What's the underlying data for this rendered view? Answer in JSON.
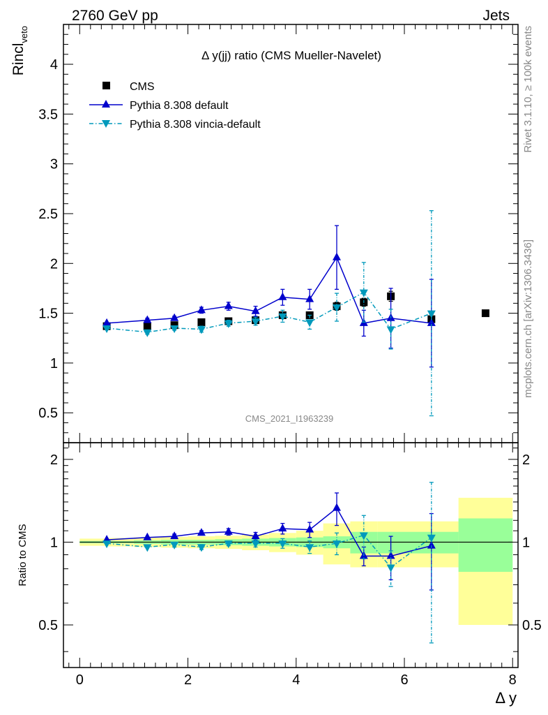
{
  "header": {
    "left": "2760 GeV pp",
    "right": "Jets"
  },
  "side_labels": {
    "rivet": "Rivet 3.1.10, ≥ 100k events",
    "mcplots": "mcplots.cern.ch [arXiv:1306.3436]"
  },
  "watermark": "CMS_2021_I1963239",
  "chart_data": [
    {
      "type": "scatter",
      "title": "Δ y(jj) ratio (CMS Mueller-Navelet)",
      "ylabel": "Rincl",
      "ylabel_sub": "veto",
      "xlim": [
        -0.3,
        8.1
      ],
      "ylim": [
        0.2,
        4.4
      ],
      "yticks": [
        0.5,
        1,
        1.5,
        2,
        2.5,
        3,
        3.5,
        4
      ],
      "ytick_labels": [
        "0.5",
        "1",
        "1.5",
        "2",
        "2.5",
        "3",
        "3.5",
        "4"
      ],
      "legend_position": "top-left",
      "series": [
        {
          "name": "CMS",
          "marker": "square",
          "color": "#000000",
          "x": [
            0.5,
            1.25,
            1.75,
            2.25,
            2.75,
            3.25,
            3.75,
            4.25,
            4.75,
            5.25,
            5.75,
            6.5,
            7.5
          ],
          "y": [
            1.37,
            1.37,
            1.38,
            1.41,
            1.42,
            1.43,
            1.48,
            1.48,
            1.57,
            1.61,
            1.67,
            1.44,
            1.5
          ],
          "yerr": [
            0.01,
            0.01,
            0.02,
            0.02,
            0.02,
            0.02,
            0.03,
            0.03,
            0.04,
            0.04,
            0.05,
            0.05,
            0.02
          ]
        },
        {
          "name": "Pythia 8.308 default",
          "marker": "triangle-up",
          "line": "solid",
          "color": "#0000cc",
          "x": [
            0.5,
            1.25,
            1.75,
            2.25,
            2.75,
            3.25,
            3.75,
            4.25,
            4.75,
            5.25,
            5.75,
            6.5
          ],
          "y": [
            1.4,
            1.43,
            1.45,
            1.53,
            1.57,
            1.52,
            1.66,
            1.64,
            2.06,
            1.4,
            1.45,
            1.4
          ],
          "yerr": [
            0.01,
            0.02,
            0.02,
            0.03,
            0.04,
            0.05,
            0.08,
            0.1,
            0.32,
            0.13,
            0.3,
            0.44
          ]
        },
        {
          "name": "Pythia 8.308 vincia-default",
          "marker": "triangle-down",
          "line": "dashdot",
          "color": "#0099bb",
          "x": [
            0.5,
            1.25,
            1.75,
            2.25,
            2.75,
            3.25,
            3.75,
            4.25,
            4.75,
            5.25,
            5.75,
            6.5
          ],
          "y": [
            1.35,
            1.31,
            1.35,
            1.34,
            1.4,
            1.42,
            1.47,
            1.41,
            1.56,
            1.71,
            1.34,
            1.5
          ],
          "yerr": [
            0.01,
            0.02,
            0.02,
            0.03,
            0.03,
            0.04,
            0.06,
            0.07,
            0.14,
            0.3,
            0.2,
            1.03
          ]
        }
      ]
    },
    {
      "type": "scatter",
      "ylabel": "Ratio to CMS",
      "xlabel": "Δ y",
      "xlim": [
        -0.3,
        8.1
      ],
      "ylim": [
        0.35,
        2.3
      ],
      "log_y": true,
      "xticks": [
        0,
        2,
        4,
        6,
        8
      ],
      "xtick_labels": [
        "0",
        "2",
        "4",
        "6",
        "8"
      ],
      "yticks": [
        0.5,
        1,
        2
      ],
      "ytick_labels": [
        "0.5",
        "1",
        "2"
      ],
      "bands": {
        "bin_edges": [
          0,
          0.5,
          1,
          1.5,
          2,
          2.5,
          3,
          3.5,
          4,
          4.5,
          5,
          5.5,
          6,
          7,
          8
        ],
        "stat_rel": [
          0.01,
          0.01,
          0.015,
          0.02,
          0.02,
          0.025,
          0.03,
          0.035,
          0.04,
          0.05,
          0.09,
          0.09,
          0.09,
          0.22
        ],
        "total_lo": [
          0.03,
          0.035,
          0.04,
          0.045,
          0.05,
          0.055,
          0.065,
          0.08,
          0.1,
          0.17,
          0.19,
          0.19,
          0.19,
          0.5
        ],
        "total_hi": [
          0.03,
          0.035,
          0.04,
          0.045,
          0.05,
          0.055,
          0.065,
          0.08,
          0.1,
          0.17,
          0.19,
          0.19,
          0.19,
          0.45
        ],
        "stat_color": "#99ff99",
        "total_color": "#ffff99"
      },
      "series": [
        {
          "name": "Pythia 8.308 default",
          "x": [
            0.5,
            1.25,
            1.75,
            2.25,
            2.75,
            3.25,
            3.75,
            4.25,
            4.75,
            5.25,
            5.75,
            6.5
          ],
          "y": [
            1.02,
            1.04,
            1.05,
            1.08,
            1.09,
            1.05,
            1.12,
            1.11,
            1.33,
            0.89,
            0.89,
            0.97
          ],
          "yerr": [
            0.01,
            0.015,
            0.02,
            0.02,
            0.03,
            0.035,
            0.05,
            0.07,
            0.18,
            0.07,
            0.16,
            0.3
          ]
        },
        {
          "name": "Pythia 8.308 vincia-default",
          "x": [
            0.5,
            1.25,
            1.75,
            2.25,
            2.75,
            3.25,
            3.75,
            4.25,
            4.75,
            5.25,
            5.75,
            6.5
          ],
          "y": [
            0.99,
            0.96,
            0.98,
            0.96,
            0.99,
            0.99,
            0.99,
            0.96,
            0.99,
            1.06,
            0.81,
            1.04
          ],
          "yerr": [
            0.01,
            0.015,
            0.02,
            0.02,
            0.02,
            0.03,
            0.04,
            0.05,
            0.09,
            0.19,
            0.12,
            0.61
          ]
        }
      ]
    }
  ]
}
